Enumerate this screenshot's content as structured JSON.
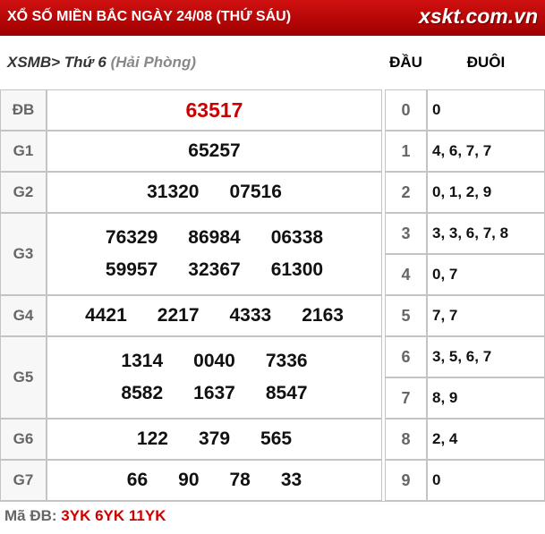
{
  "header": {
    "title": "XỔ SỐ MIỀN BẮC NGÀY 24/08 (THỨ SÁU)",
    "site": "xskt.com.vn"
  },
  "subheader": {
    "region": "XSMB>",
    "day": "Thứ 6",
    "province": "(Hải Phòng)",
    "head_label": "ĐẦU",
    "tail_label": "ĐUÔI"
  },
  "prizes": [
    {
      "label": "ĐB",
      "rows": [
        [
          "63517"
        ]
      ]
    },
    {
      "label": "G1",
      "rows": [
        [
          "65257"
        ]
      ]
    },
    {
      "label": "G2",
      "rows": [
        [
          "31320",
          "07516"
        ]
      ]
    },
    {
      "label": "G3",
      "rows": [
        [
          "76329",
          "86984",
          "06338"
        ],
        [
          "59957",
          "32367",
          "61300"
        ]
      ]
    },
    {
      "label": "G4",
      "rows": [
        [
          "4421",
          "2217",
          "4333",
          "2163"
        ]
      ]
    },
    {
      "label": "G5",
      "rows": [
        [
          "1314",
          "0040",
          "7336"
        ],
        [
          "8582",
          "1637",
          "8547"
        ]
      ]
    },
    {
      "label": "G6",
      "rows": [
        [
          "122",
          "379",
          "565"
        ]
      ]
    },
    {
      "label": "G7",
      "rows": [
        [
          "66",
          "90",
          "78",
          "33"
        ]
      ]
    }
  ],
  "loto": [
    {
      "head": "0",
      "tails": "0"
    },
    {
      "head": "1",
      "tails": "4, 6, 7, 7"
    },
    {
      "head": "2",
      "tails": "0, 1, 2, 9"
    },
    {
      "head": "3",
      "tails": "3, 3, 6, 7, 8"
    },
    {
      "head": "4",
      "tails": "0, 7"
    },
    {
      "head": "5",
      "tails": "7, 7"
    },
    {
      "head": "6",
      "tails": "3, 5, 6, 7"
    },
    {
      "head": "7",
      "tails": "8, 9"
    },
    {
      "head": "8",
      "tails": "2, 4"
    },
    {
      "head": "9",
      "tails": "0"
    }
  ],
  "footer": {
    "label": "Mã ĐB:",
    "value": "3YK 6YK 11YK"
  }
}
